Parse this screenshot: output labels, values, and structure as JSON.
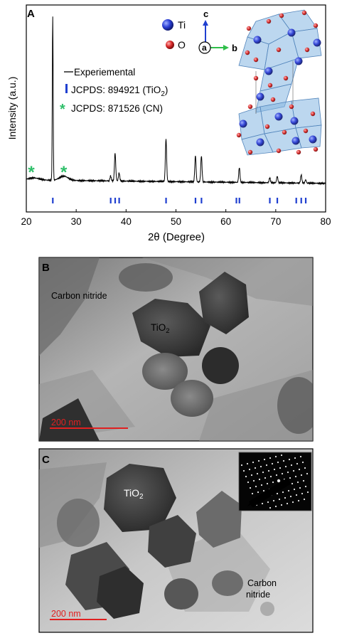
{
  "panel_a": {
    "letter": "A",
    "ylabel": "Intensity (a.u.)",
    "xlabel": "2θ (Degree)",
    "legend": {
      "experimental": "Experiemental",
      "jcpds_tio2": "JCPDS: 894921 (TiO",
      "jcpds_tio2_sub": "2",
      "jcpds_tio2_close": ")",
      "jcpds_cn": "JCPDS: 871526 (CN)"
    },
    "inset": {
      "ti_label": "Ti",
      "o_label": "O",
      "axis_c": "c",
      "axis_a": "a",
      "axis_b": "b"
    },
    "colors": {
      "ti": "#2b3fd6",
      "o": "#d92a2a",
      "ref_tick": "#1f3fd0",
      "cn_star": "#2fbf6a",
      "trace": "#000000"
    }
  },
  "chart_data": {
    "type": "line",
    "xlim": [
      20,
      80
    ],
    "xticks": [
      20,
      30,
      40,
      50,
      60,
      70,
      80
    ],
    "series": [
      {
        "name": "Experiemental",
        "peaks": [
          {
            "x": 25.3,
            "h": 1.0
          },
          {
            "x": 36.9,
            "h": 0.03
          },
          {
            "x": 37.8,
            "h": 0.17
          },
          {
            "x": 38.6,
            "h": 0.05
          },
          {
            "x": 48.0,
            "h": 0.26
          },
          {
            "x": 53.9,
            "h": 0.16
          },
          {
            "x": 55.1,
            "h": 0.16
          },
          {
            "x": 62.7,
            "h": 0.09
          },
          {
            "x": 68.8,
            "h": 0.03
          },
          {
            "x": 70.3,
            "h": 0.04
          },
          {
            "x": 75.1,
            "h": 0.05
          },
          {
            "x": 76.0,
            "h": 0.02
          }
        ]
      },
      {
        "name": "JCPDS: 894921 (TiO2)",
        "ticks": [
          25.3,
          36.9,
          37.8,
          38.6,
          48.0,
          53.9,
          55.1,
          62.1,
          62.7,
          68.8,
          70.3,
          74.1,
          75.1,
          76.0
        ]
      },
      {
        "name": "JCPDS: 871526 (CN)",
        "stars": [
          21.0,
          27.5
        ]
      }
    ]
  },
  "panel_b": {
    "letter": "B",
    "label_cn": "Carbon nitride",
    "label_tio2": "TiO",
    "label_tio2_sub": "2",
    "scale": "200  nm"
  },
  "panel_c": {
    "letter": "C",
    "label_tio2": "TiO",
    "label_tio2_sub": "2",
    "label_cn_1": "Carbon",
    "label_cn_2": "nitride",
    "scale": "200  nm"
  }
}
